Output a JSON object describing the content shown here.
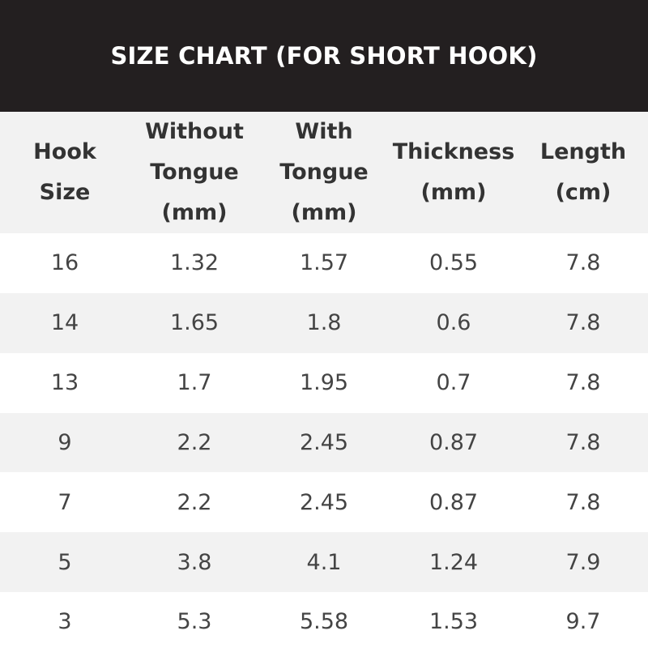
{
  "title": "SIZE CHART (FOR SHORT HOOK)",
  "table": {
    "headers": [
      [
        "Hook",
        "Size"
      ],
      [
        "Without",
        "Tongue",
        "(mm)"
      ],
      [
        "With",
        "Tongue",
        "(mm)"
      ],
      [
        "Thickness",
        "(mm)"
      ],
      [
        "Length",
        "(cm)"
      ]
    ],
    "rows": [
      [
        "16",
        "1.32",
        "1.57",
        "0.55",
        "7.8"
      ],
      [
        "14",
        "1.65",
        "1.8",
        "0.6",
        "7.8"
      ],
      [
        "13",
        "1.7",
        "1.95",
        "0.7",
        "7.8"
      ],
      [
        "9",
        "2.2",
        "2.45",
        "0.87",
        "7.8"
      ],
      [
        "7",
        "2.2",
        "2.45",
        "0.87",
        "7.8"
      ],
      [
        "5",
        "3.8",
        "4.1",
        "1.24",
        "7.9"
      ],
      [
        "3",
        "5.3",
        "5.58",
        "1.53",
        "9.7"
      ]
    ]
  },
  "colors": {
    "title_bg": "#231f20",
    "stripe": "#f2f2f2"
  }
}
